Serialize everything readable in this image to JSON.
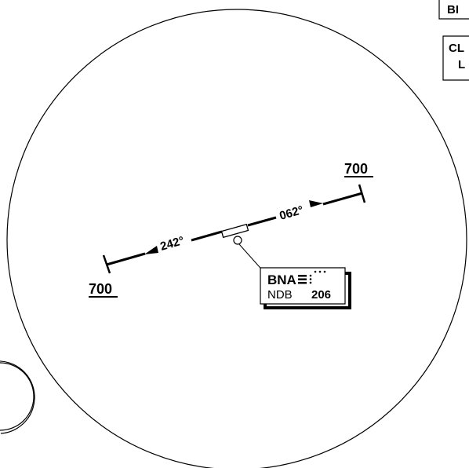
{
  "legend": {
    "box1_text": "BI",
    "box2_line1": "CL",
    "box2_line2": "L"
  },
  "route": {
    "bearing_ne": "062°",
    "bearing_sw": "242°",
    "altitude_ne": "700",
    "altitude_sw": "700"
  },
  "navaid": {
    "ident": "BNA",
    "type": "NDB",
    "frequency": "206",
    "morse_icon": "morse-code-icon"
  },
  "colors": {
    "ink": "#000000",
    "paper": "#ffffff"
  }
}
